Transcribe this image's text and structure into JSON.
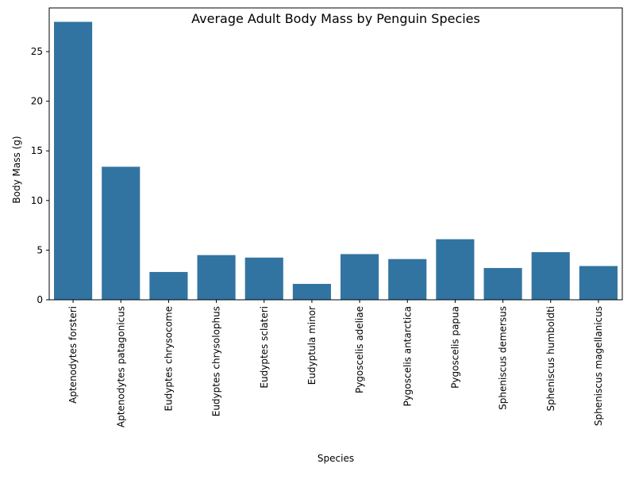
{
  "chart_data": {
    "type": "bar",
    "title": "Average Adult Body Mass by Penguin Species",
    "xlabel": "Species",
    "ylabel": "Body Mass (g)",
    "categories": [
      "Aptenodytes forsteri",
      "Aptenodytes patagonicus",
      "Eudyptes chrysocome",
      "Eudyptes chrysolophus",
      "Eudyptes sclateri",
      "Eudyptula minor",
      "Pygoscelis adeliae",
      "Pygoscelis antarctica",
      "Pygoscelis papua",
      "Spheniscus demersus",
      "Spheniscus humboldti",
      "Spheniscus magellanicus"
    ],
    "values": [
      28.0,
      13.4,
      2.8,
      4.5,
      4.25,
      1.6,
      4.6,
      4.1,
      6.1,
      3.2,
      4.8,
      3.4
    ],
    "ylim": [
      0,
      29.4
    ],
    "yticks": [
      0,
      5,
      10,
      15,
      20,
      25
    ],
    "bar_color": "#3274a1",
    "grid": false,
    "legend": "none"
  }
}
